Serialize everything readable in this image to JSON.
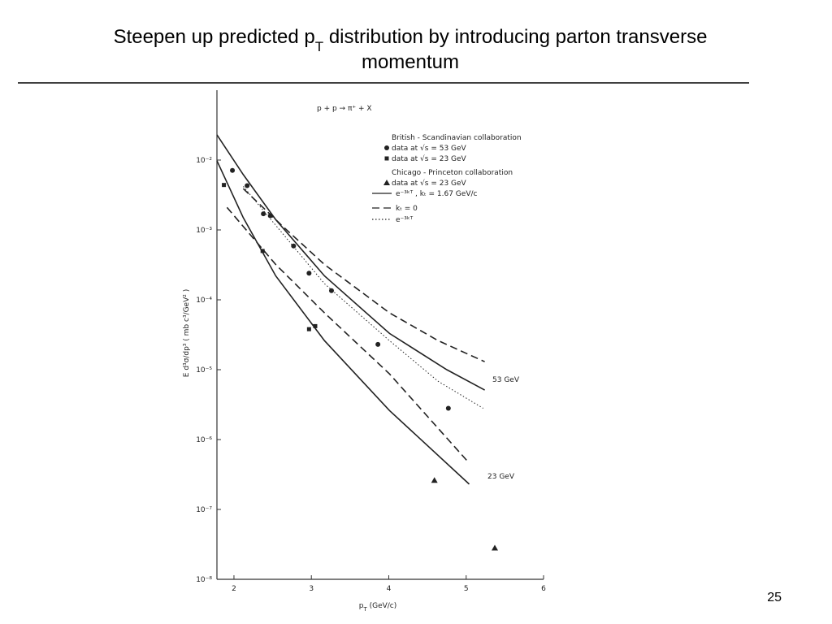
{
  "slide": {
    "title_lines": [
      [
        "Steepen up predicted p",
        "T",
        " distribution by introducing parton transverse"
      ],
      [
        "momentum"
      ]
    ],
    "page_number": "25"
  },
  "chart_data": {
    "type": "scatter",
    "reaction": "p + p → π⁺ + X",
    "xlabel": [
      "p",
      "T",
      "  (GeV/c)"
    ],
    "ylabel": "E d³σ/dp³   ( mb c³/GeV² )",
    "log_y": true,
    "xlim": [
      1.78,
      6
    ],
    "ylim": [
      1e-08,
      0.1
    ],
    "xticks": [
      2,
      3,
      4,
      5,
      6
    ],
    "yticks": [
      {
        "value": 0.01,
        "label": "10⁻²"
      },
      {
        "value": 0.001,
        "label": "10⁻³"
      },
      {
        "value": 0.0001,
        "label": "10⁻⁴"
      },
      {
        "value": 1e-05,
        "label": "10⁻⁵"
      },
      {
        "value": 1e-06,
        "label": "10⁻⁶"
      },
      {
        "value": 1e-07,
        "label": "10⁻⁷"
      },
      {
        "value": 1e-08,
        "label": "10⁻⁸"
      }
    ],
    "legend_groups": [
      {
        "title": "British - Scandinavian  collaboration",
        "series": [
          0,
          1
        ]
      },
      {
        "title": "Chicago - Princeton  collaboration",
        "series": [
          2,
          3,
          4,
          5
        ]
      }
    ],
    "series": [
      {
        "name": "data  at  √s = 53 GeV",
        "color": "#222",
        "marker": "circle",
        "x": [
          1.98,
          2.17,
          2.38,
          2.47,
          2.77,
          2.97,
          3.26,
          3.86,
          4.77
        ],
        "values": [
          0.0071,
          0.0043,
          0.0017,
          0.0016,
          0.00059,
          0.00024,
          0.000135,
          2.3e-05,
          2.8e-06
        ]
      },
      {
        "name": "data  at  √s = 23 GeV",
        "color": "#222",
        "marker": "square",
        "x": [
          1.87,
          2.37,
          2.97,
          3.05
        ],
        "values": [
          0.0044,
          0.0005,
          3.8e-05,
          4.2e-05
        ]
      },
      {
        "name": "data  at  √s = 23 GeV",
        "color": "#222",
        "marker": "triangle",
        "x": [
          4.59,
          5.37
        ],
        "values": [
          2.6e-07,
          2.8e-08
        ]
      },
      {
        "name": "e⁻³ᵏᵀ , kₜ = 1.67  GeV/c",
        "color": "#222",
        "line": "solid",
        "x": [
          1.78,
          2.12,
          2.54,
          3.17,
          4.01,
          4.75,
          5.24
        ],
        "values": [
          0.023,
          0.0062,
          0.0014,
          0.00022,
          3.3e-05,
          1e-05,
          5.1e-06
        ]
      },
      {
        "name": "kₜ = 0",
        "color": "#222",
        "line": "dashed",
        "x": [
          2.12,
          2.64,
          3.17,
          4.01,
          4.64,
          5.24
        ],
        "values": [
          0.0039,
          0.0011,
          0.00032,
          6.5e-05,
          2.6e-05,
          1.3e-05
        ]
      },
      {
        "name": "e⁻³ᵏᵀ",
        "color": "#222",
        "line": "dotted",
        "x": [
          2.12,
          3.17,
          4.01,
          4.64,
          5.22
        ],
        "values": [
          0.0042,
          0.00017,
          2.6e-05,
          6.8e-06,
          2.8e-06
        ]
      },
      {
        "color": "#222",
        "line": "solid",
        "x": [
          1.78,
          2.12,
          2.54,
          3.17,
          4.01,
          5.04
        ],
        "values": [
          0.0098,
          0.0015,
          0.00022,
          2.6e-05,
          2.6e-06,
          2.3e-07
        ]
      },
      {
        "color": "#222",
        "line": "dashed",
        "x": [
          1.91,
          2.54,
          3.17,
          4.01,
          5.04
        ],
        "values": [
          0.0021,
          0.00032,
          6.5e-05,
          8.7e-06,
          4.6e-07
        ]
      }
    ],
    "annotations": [
      "53 GeV",
      "23 GeV"
    ]
  }
}
